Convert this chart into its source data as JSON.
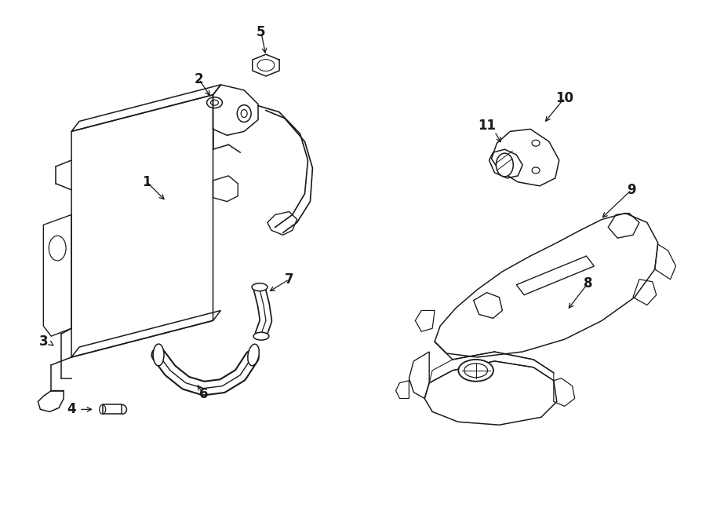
{
  "bg_color": "#ffffff",
  "line_color": "#1a1a1a",
  "lw": 1.1,
  "figsize": [
    9.0,
    6.61
  ],
  "dpi": 100,
  "labels": {
    "1": [
      1.85,
      4.3,
      2.05,
      4.1
    ],
    "2": [
      2.55,
      5.62,
      2.72,
      5.35
    ],
    "3": [
      0.6,
      2.28,
      0.85,
      2.22
    ],
    "4": [
      0.88,
      1.38,
      1.12,
      1.42
    ],
    "5": [
      3.32,
      6.22,
      3.38,
      5.95
    ],
    "6": [
      2.62,
      1.72,
      2.5,
      1.92
    ],
    "7": [
      3.68,
      3.08,
      3.38,
      2.88
    ],
    "8": [
      7.52,
      3.05,
      7.28,
      2.72
    ],
    "9": [
      8.08,
      4.22,
      7.72,
      3.88
    ],
    "10": [
      7.28,
      5.38,
      6.98,
      5.1
    ],
    "11": [
      6.28,
      5.02,
      6.48,
      4.82
    ]
  }
}
